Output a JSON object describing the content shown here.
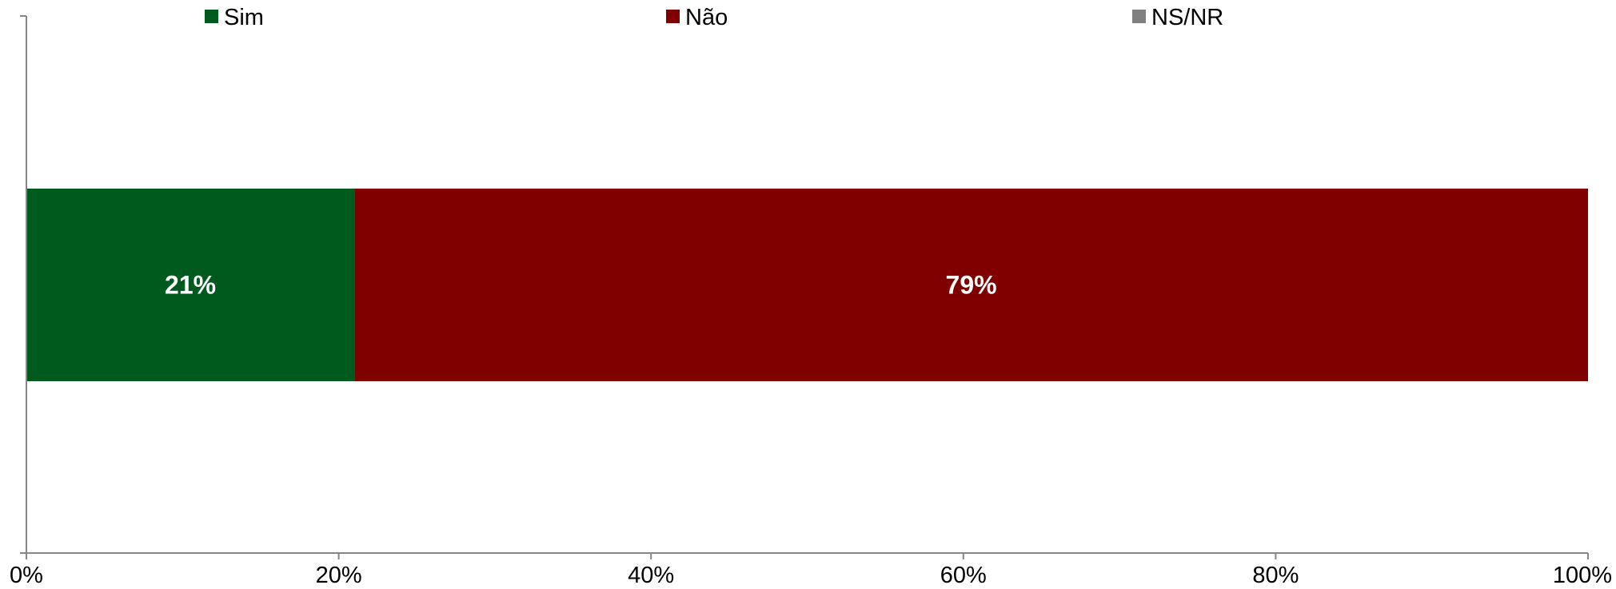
{
  "chart_data": {
    "type": "bar",
    "orientation": "horizontal",
    "stacked": true,
    "percent_stacked": true,
    "categories": [
      ""
    ],
    "series": [
      {
        "name": "Sim",
        "values": [
          21
        ],
        "color": "#005A1E",
        "data_label": "21%"
      },
      {
        "name": "Não",
        "values": [
          79
        ],
        "color": "#800000",
        "data_label": "79%"
      },
      {
        "name": "NS/NR",
        "values": [
          0
        ],
        "color": "#808080",
        "data_label": ""
      }
    ],
    "xlim": [
      0,
      100
    ],
    "x_ticks": [
      0,
      20,
      40,
      60,
      80,
      100
    ],
    "x_tick_labels": [
      "0%",
      "20%",
      "40%",
      "60%",
      "80%",
      "100%"
    ],
    "title": "",
    "xlabel": "",
    "ylabel": "",
    "grid": false,
    "legend_position": "top"
  },
  "colors": {
    "axis": "#868686"
  }
}
